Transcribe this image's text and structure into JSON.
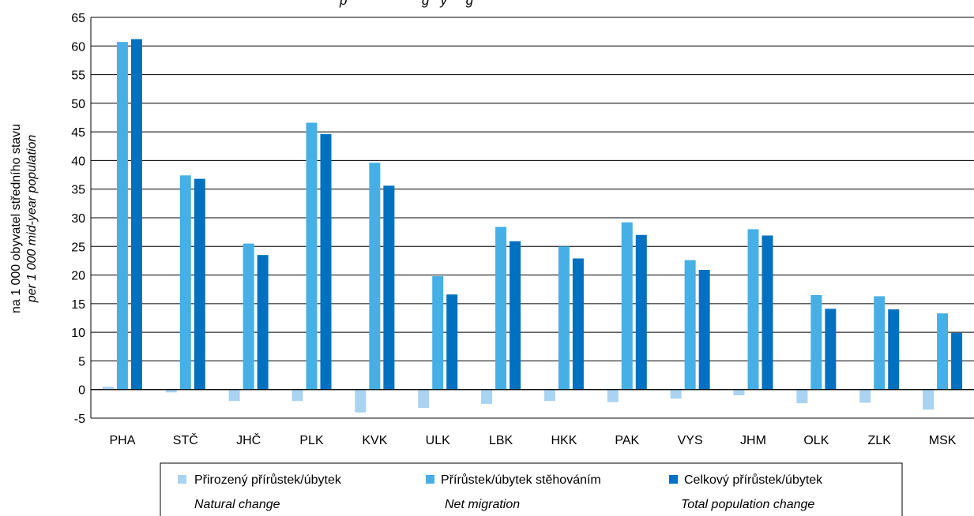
{
  "chart_data": {
    "type": "bar",
    "title_fragment": "p                    g   y     g",
    "ylabel": "na 1 000 obyvatel středního stavu",
    "ylabel_en": "per 1 000 mid-year population",
    "ylim": [
      -5,
      65
    ],
    "yticks": [
      "-5",
      "0",
      "5",
      "10",
      "15",
      "20",
      "25",
      "30",
      "35",
      "40",
      "45",
      "50",
      "55",
      "60",
      "65"
    ],
    "grid": true,
    "legend_placement": "bottom",
    "categories": [
      "PHA",
      "STČ",
      "JHČ",
      "PLK",
      "KVK",
      "ULK",
      "LBK",
      "HKK",
      "PAK",
      "VYS",
      "JHM",
      "OLK",
      "ZLK",
      "MSK"
    ],
    "series": [
      {
        "name": "Přirozený přírůstek/úbytek",
        "name_en": "Natural change",
        "color": "#a9d3f0",
        "values": [
          0.5,
          -0.5,
          -2.0,
          -2.0,
          -4.0,
          -3.2,
          -2.5,
          -2.0,
          -2.2,
          -1.6,
          -1.0,
          -2.4,
          -2.3,
          -3.5
        ]
      },
      {
        "name": "Přírůstek/úbytek stěhováním",
        "name_en": "Net migration",
        "color": "#46b0e6",
        "values": [
          60.7,
          37.4,
          25.5,
          46.6,
          39.6,
          19.8,
          28.4,
          25.0,
          29.2,
          22.6,
          28.0,
          16.5,
          16.3,
          13.3
        ]
      },
      {
        "name": "Celkový přírůstek/úbytek",
        "name_en": "Total population change",
        "color": "#0070c0",
        "values": [
          61.2,
          36.8,
          23.5,
          44.6,
          35.6,
          16.6,
          25.9,
          22.9,
          27.0,
          20.9,
          26.9,
          14.1,
          14.0,
          9.9
        ]
      }
    ]
  }
}
